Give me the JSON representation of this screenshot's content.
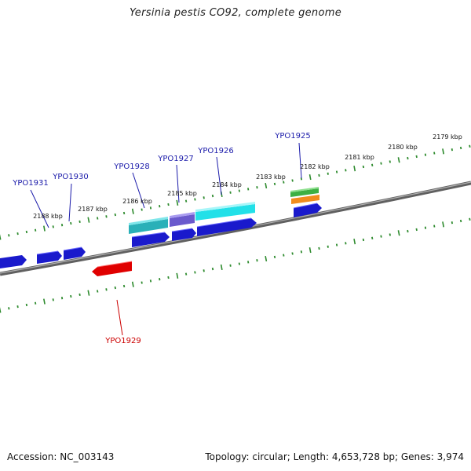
{
  "title": "Yersinia pestis CO92, complete genome",
  "accession_line": "Accession: NC_003143",
  "summary_line": "Topology: circular; Length: 4,653,728 bp; Genes: 3,974",
  "colors": {
    "backbone": "#808080",
    "tick": "#2e8b2e",
    "forward_gene": "#1a1acc",
    "reverse_gene": "#e00000",
    "label_forward": "#1a1aaa",
    "label_reverse": "#cc0000",
    "feature_teal": "#2ab0b8",
    "feature_purple": "#6a5acd",
    "feature_cyan": "#22e0e8",
    "feature_green": "#3cb043",
    "feature_orange": "#f08c1e"
  },
  "kbp_labels": [
    "2179 kbp",
    "2180 kbp",
    "2181 kbp",
    "2182 kbp",
    "2183 kbp",
    "2184 kbp",
    "2185 kbp",
    "2186 kbp",
    "2187 kbp",
    "2188 kbp"
  ],
  "gene_labels": {
    "ypo1925": "YPO1925",
    "ypo1926": "YPO1926",
    "ypo1927": "YPO1927",
    "ypo1928": "YPO1928",
    "ypo1929": "YPO1929",
    "ypo1930": "YPO1930",
    "ypo1931": "YPO1931"
  }
}
